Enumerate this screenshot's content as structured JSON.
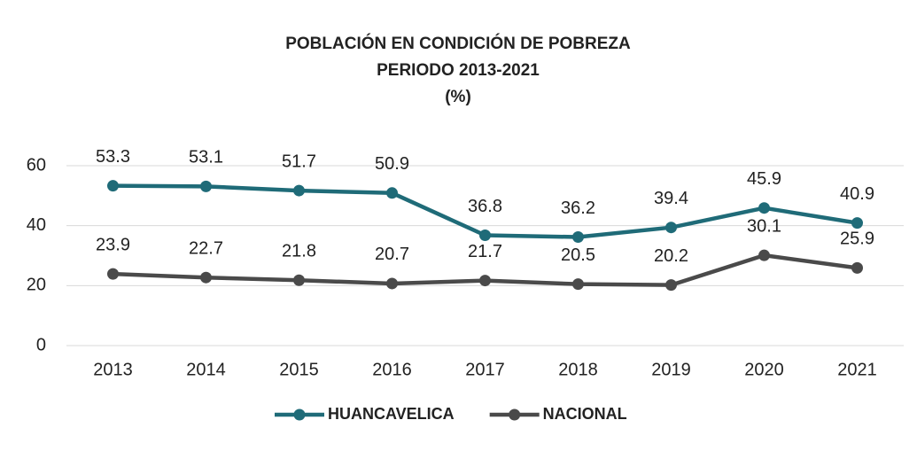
{
  "chart_data": {
    "type": "line",
    "title": "POBLACIÓN EN CONDICIÓN DE POBREZA",
    "subtitle": "PERIODO 2013-2021",
    "unit_label": "(%)",
    "categories": [
      "2013",
      "2014",
      "2015",
      "2016",
      "2017",
      "2018",
      "2019",
      "2020",
      "2021"
    ],
    "series": [
      {
        "name": "HUANCAVELICA",
        "color": "#1f6b78",
        "values": [
          53.3,
          53.1,
          51.7,
          50.9,
          36.8,
          36.2,
          39.4,
          45.9,
          40.9
        ]
      },
      {
        "name": "NACIONAL",
        "color": "#4a4a4a",
        "values": [
          23.9,
          22.7,
          21.8,
          20.7,
          21.7,
          20.5,
          20.2,
          30.1,
          25.9
        ]
      }
    ],
    "ylim": [
      0,
      60
    ],
    "yticks": [
      0,
      20,
      40,
      60
    ],
    "grid": true,
    "legend": "bottom"
  }
}
